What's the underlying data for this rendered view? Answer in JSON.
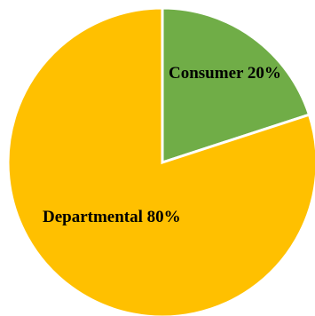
{
  "chart_data": {
    "type": "pie",
    "slices": [
      {
        "label": "Consumer 20%",
        "value": 20,
        "color": "#70ad47"
      },
      {
        "label": "Departmental 80%",
        "value": 80,
        "color": "#ffc000"
      }
    ],
    "start_angle_deg": 0,
    "direction": "clockwise",
    "edge_color": "#ffffff",
    "legend": "none"
  }
}
